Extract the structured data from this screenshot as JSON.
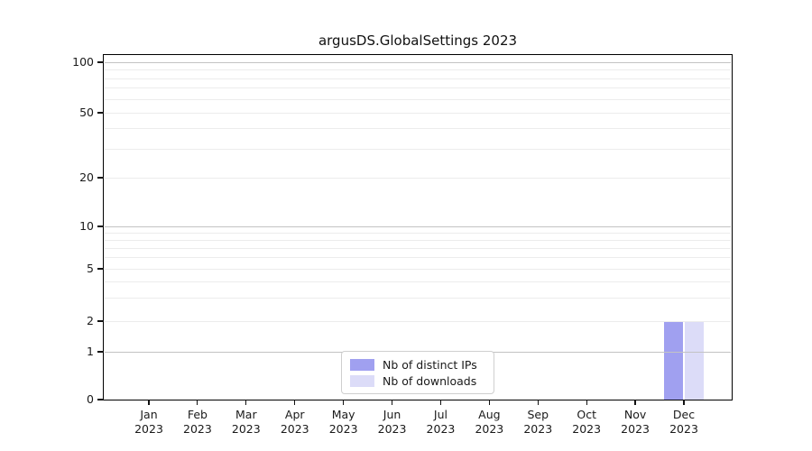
{
  "title": "argusDS.GlobalSettings 2023",
  "chart_data": {
    "type": "bar",
    "title": "argusDS.GlobalSettings 2023",
    "categories": [
      "Jan 2023",
      "Feb 2023",
      "Mar 2023",
      "Apr 2023",
      "May 2023",
      "Jun 2023",
      "Jul 2023",
      "Aug 2023",
      "Sep 2023",
      "Oct 2023",
      "Nov 2023",
      "Dec 2023"
    ],
    "series": [
      {
        "name": "Nb of distinct IPs",
        "color": "#a0a0f0",
        "values": [
          0,
          0,
          0,
          0,
          0,
          0,
          0,
          0,
          0,
          0,
          0,
          2
        ]
      },
      {
        "name": "Nb of downloads",
        "color": "#dcdcf8",
        "values": [
          0,
          0,
          0,
          0,
          0,
          0,
          0,
          0,
          0,
          0,
          0,
          2
        ]
      }
    ],
    "xlabel": "",
    "ylabel": "",
    "y_scale": "symlog (linear 0-1, logarithmic above 1)",
    "y_ticks": [
      0,
      1,
      2,
      5,
      10,
      20,
      50,
      100
    ],
    "y_minor_gridlines": [
      2,
      3,
      4,
      5,
      6,
      7,
      8,
      9,
      20,
      30,
      40,
      50,
      60,
      70,
      80,
      90
    ],
    "y_major_gridlines": [
      1,
      10,
      100
    ],
    "ylim": [
      0,
      115
    ],
    "grid": "horizontal only",
    "legend_position": "lower center",
    "colors": {
      "major_grid": "#c3c3c3",
      "minor_grid": "#ececec",
      "axis": "#000000",
      "text": "#1a1a1a"
    }
  }
}
